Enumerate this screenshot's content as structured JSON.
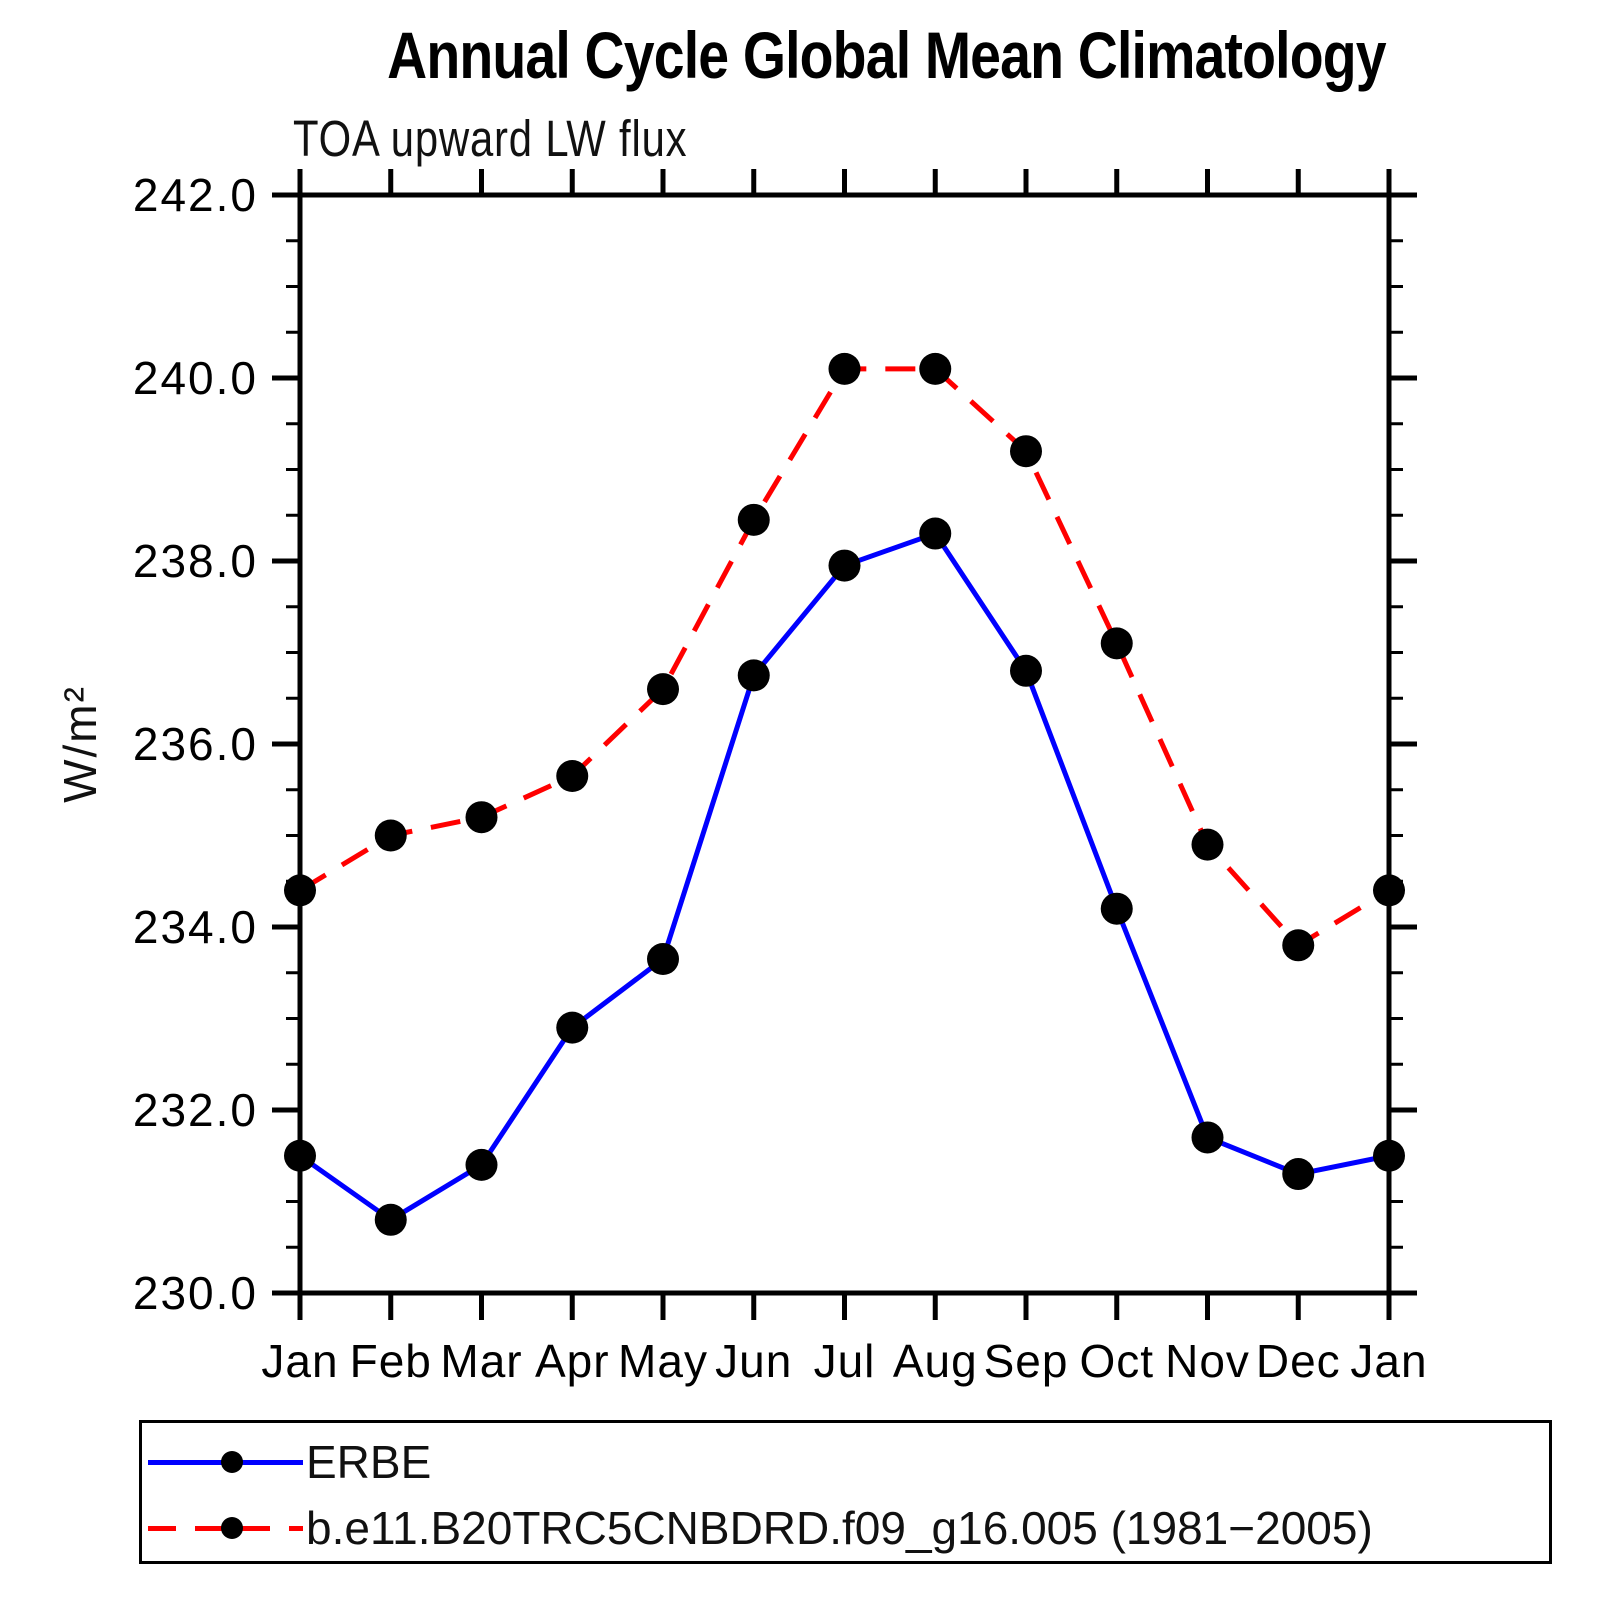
{
  "title": "Annual Cycle Global Mean Climatology",
  "subtitle": "TOA upward LW flux",
  "y_axis_label": "W/m²",
  "chart_data": {
    "type": "line",
    "title": "Annual Cycle Global Mean Climatology",
    "subtitle": "TOA upward LW flux",
    "ylabel": "W/m²",
    "categories": [
      "Jan",
      "Feb",
      "Mar",
      "Apr",
      "May",
      "Jun",
      "Jul",
      "Aug",
      "Sep",
      "Oct",
      "Nov",
      "Dec",
      "Jan"
    ],
    "series": [
      {
        "name": "ERBE",
        "color": "#0000ff",
        "line_style": "solid",
        "marker": "filled-circle",
        "marker_color": "#000000",
        "values": [
          231.5,
          230.8,
          231.4,
          232.9,
          233.65,
          236.75,
          237.95,
          238.3,
          236.8,
          234.2,
          231.7,
          231.3,
          231.5
        ]
      },
      {
        "name": "b.e11.B20TRC5CNBDRD.f09_g16.005 (1981−2005)",
        "color": "#ff0000",
        "line_style": "dashed",
        "marker": "filled-circle",
        "marker_color": "#000000",
        "values": [
          234.4,
          235.0,
          235.2,
          235.65,
          236.6,
          238.45,
          240.1,
          240.1,
          239.2,
          237.1,
          234.9,
          233.8,
          234.4
        ]
      }
    ],
    "ylim": [
      230.0,
      242.0
    ],
    "ytick_labels": [
      "230.0",
      "232.0",
      "234.0",
      "236.0",
      "238.0",
      "240.0",
      "242.0"
    ],
    "ytick_step_major": 2.0,
    "ytick_step_minor": 0.5,
    "grid": "off",
    "legend_position": "bottom"
  },
  "legend": {
    "entries": [
      {
        "label": "ERBE",
        "color": "#0000ff",
        "style": "solid"
      },
      {
        "label": "b.e11.B20TRC5CNBDRD.f09_g16.005 (1981−2005)",
        "color": "#ff0000",
        "style": "dashed"
      }
    ]
  }
}
